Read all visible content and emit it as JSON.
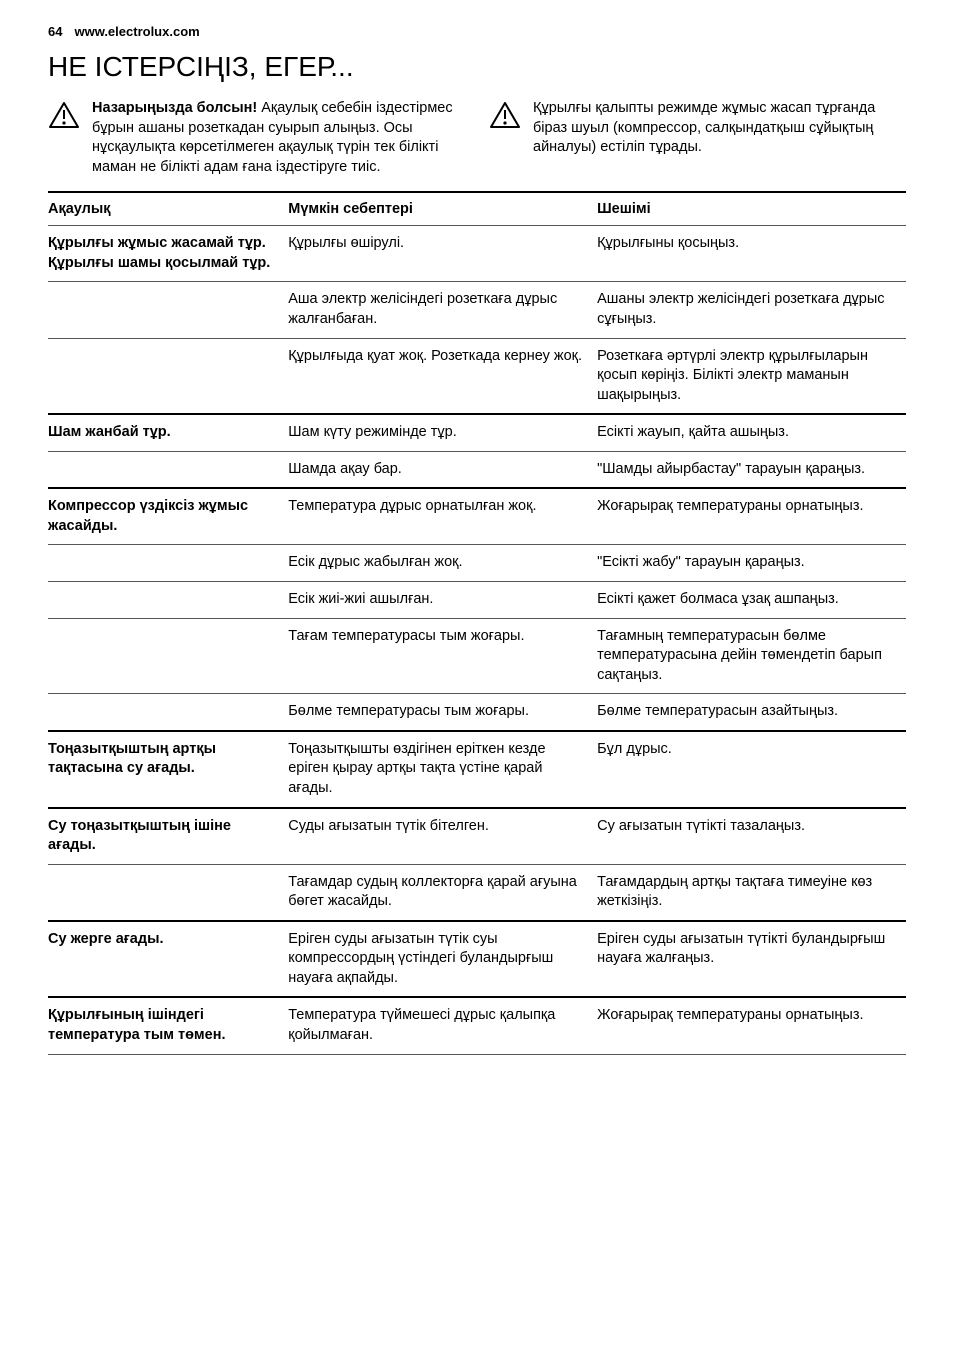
{
  "header": {
    "page_num": "64",
    "url": "www.electrolux.com"
  },
  "title": "НЕ ІСТЕРСІҢІЗ, ЕГЕР...",
  "warnings": [
    {
      "title": "Назарыңызда болсын!",
      "body": "Ақаулық себебін іздестірмес бұрын ашаны розеткадан суырып алыңыз. Осы нұсқаулықта көрсетілмеген ақаулық түрін тек білікті маман не білікті адам ғана іздестіруге тиіс."
    },
    {
      "title": "",
      "body": "Құрылғы қалыпты режимде жұмыс жасап тұрғанда біраз шуыл (компрессор, салқындатқыш сұйықтың айналуы) естіліп тұрады."
    }
  ],
  "thead": {
    "c1": "Ақаулық",
    "c2": "Мүмкін себептері",
    "c3": "Шешімі"
  },
  "rows": [
    {
      "heavy": false,
      "p": "Құрылғы жұмыс жасамай тұр. Құрылғы шамы қосылмай тұр.",
      "c": "Құрылғы өшірулі.",
      "s": "Құрылғыны қосыңыз."
    },
    {
      "heavy": false,
      "p": "",
      "c": "Аша электр желісіндегі розеткаға дұрыс жалғанбаған.",
      "s": "Ашаны электр желісіндегі розеткаға дұрыс сұғыңыз."
    },
    {
      "heavy": false,
      "p": "",
      "c": "Құрылғыда қуат жоқ. Розеткада кернеу жоқ.",
      "s": "Розеткаға әртүрлі электр құрылғыларын қосып көріңіз. Білікті электр маманын шақырыңыз."
    },
    {
      "heavy": true,
      "p": "Шам жанбай тұр.",
      "c": "Шам күту режимінде тұр.",
      "s": "Есікті жауып, қайта ашыңыз."
    },
    {
      "heavy": false,
      "p": "",
      "c": "Шамда ақау бар.",
      "s": "\"Шамды айырбастау\" тарауын қараңыз."
    },
    {
      "heavy": true,
      "p": "Компрессор үздіксіз жұмыс жасайды.",
      "c": "Температура дұрыс орнатылған жоқ.",
      "s": "Жоғарырақ температураны орнатыңыз."
    },
    {
      "heavy": false,
      "p": "",
      "c": "Есік дұрыс жабылған жоқ.",
      "s": "\"Есікті жабу\" тарауын қараңыз."
    },
    {
      "heavy": false,
      "p": "",
      "c": "Есік жиі-жиі ашылған.",
      "s": "Есікті қажет болмаса ұзақ ашпаңыз."
    },
    {
      "heavy": false,
      "p": "",
      "c": "Тағам температурасы тым жоғары.",
      "s": "Тағамның температурасын бөлме температурасына дейін төмендетіп барып сақтаңыз."
    },
    {
      "heavy": false,
      "p": "",
      "c": "Бөлме температурасы тым жоғары.",
      "s": "Бөлме температурасын азайтыңыз."
    },
    {
      "heavy": true,
      "p": "Тоңазытқыштың артқы тақтасына су ағады.",
      "c": "Тоңазытқышты өздігінен еріткен кезде еріген қырау артқы тақта үстіне қарай ағады.",
      "s": "Бұл дұрыс."
    },
    {
      "heavy": true,
      "p": "Су тоңазытқыштың ішіне ағады.",
      "c": "Суды ағызатын түтік бітелген.",
      "s": "Су ағызатын түтікті тазалаңыз."
    },
    {
      "heavy": false,
      "p": "",
      "c": "Тағамдар судың коллекторға қарай ағуына бөгет жасайды.",
      "s": "Тағамдардың артқы тақтаға тимеуіне көз жеткізіңіз."
    },
    {
      "heavy": true,
      "p": "Су жерге ағады.",
      "c": "Еріген суды ағызатын түтік суы компрессордың үстіндегі буландырғыш науаға ақпайды.",
      "s": "Еріген суды ағызатын түтікті буландырғыш науаға жалғаңыз."
    },
    {
      "heavy": true,
      "p": "Құрылғының ішіндегі температура тым төмен.",
      "c": "Температура түймешесі дұрыс қалыпқа қойылмаған.",
      "s": "Жоғарырақ температураны орнатыңыз."
    }
  ]
}
